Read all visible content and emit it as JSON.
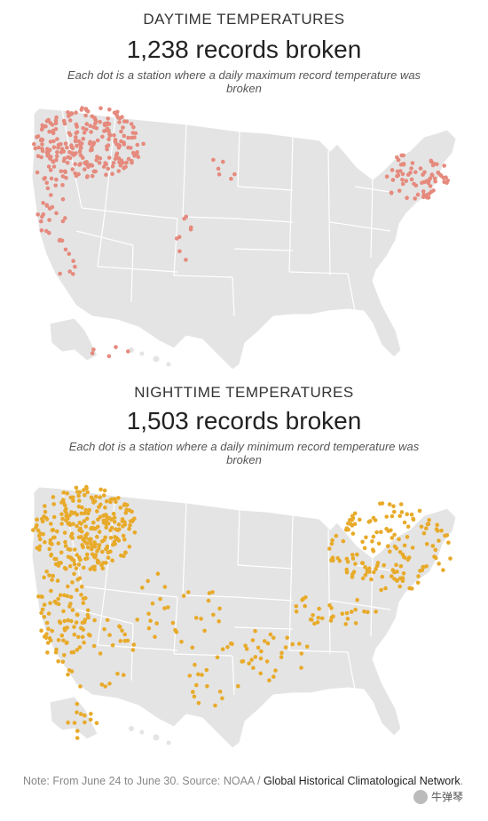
{
  "panels": {
    "day": {
      "kicker": "DAYTIME TEMPERATURES",
      "headline": "1,238 records broken",
      "subtitle": "Each dot is a station where a daily maximum record temperature was broken",
      "dot_color": "#e58a7d"
    },
    "night": {
      "kicker": "NIGHTTIME TEMPERATURES",
      "headline": "1,503 records broken",
      "subtitle": "Each dot is a station where a daily minimum record temperature was broken",
      "dot_color": "#e8aa2a"
    }
  },
  "map_colors": {
    "land": "#e4e4e4",
    "borders": "#ffffff"
  },
  "note": {
    "text": "Note: From June 24 to June 30. Source: NOAA /",
    "link": "Global Historical Climatological Network"
  },
  "watermark": "牛弹琴"
}
